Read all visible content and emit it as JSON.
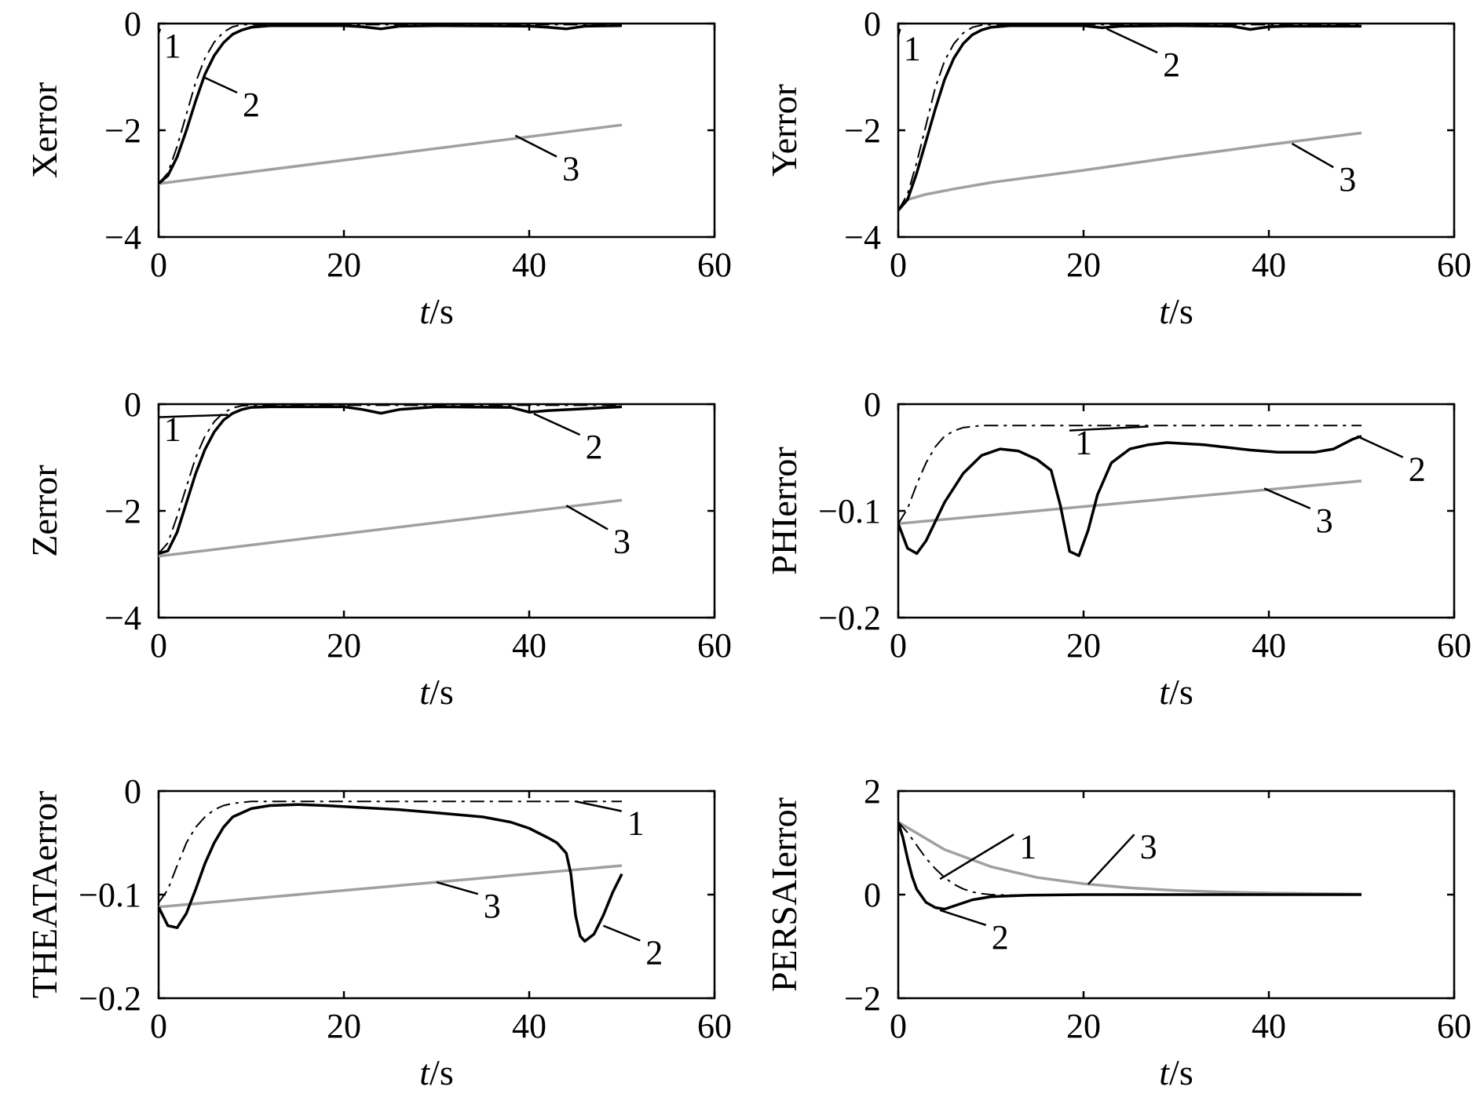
{
  "colors": {
    "s1": "#000000",
    "s2": "#000000",
    "s3": "#a0a0a0"
  },
  "chart_data": [
    {
      "type": "line",
      "ylabel": "Xerror",
      "xlabel_italic": "t",
      "xlabel_unit": "/s",
      "xlim": [
        0,
        60
      ],
      "ylim": [
        -4,
        0
      ],
      "xticks": [
        0,
        20,
        40,
        60
      ],
      "yticks": [
        0,
        -2,
        -4
      ],
      "ytick_labels": [
        "0",
        "−2",
        "−4"
      ],
      "series": [
        {
          "label": "1",
          "x": [
            0,
            1,
            2,
            3,
            4,
            5,
            6,
            7,
            8,
            9,
            10,
            50
          ],
          "y": [
            -3,
            -2.8,
            -2.3,
            -1.7,
            -1.1,
            -0.65,
            -0.35,
            -0.16,
            -0.06,
            -0.02,
            -0.02,
            -0.02
          ]
        },
        {
          "label": "2",
          "x": [
            0,
            1,
            2,
            3,
            4,
            5,
            6,
            7,
            8,
            9,
            10,
            12,
            14,
            20,
            22,
            24,
            26,
            30,
            40,
            42,
            44,
            46,
            50
          ],
          "y": [
            -3,
            -2.85,
            -2.5,
            -2,
            -1.45,
            -0.95,
            -0.6,
            -0.36,
            -0.2,
            -0.12,
            -0.07,
            -0.04,
            -0.04,
            -0.04,
            -0.06,
            -0.1,
            -0.05,
            -0.04,
            -0.05,
            -0.07,
            -0.1,
            -0.05,
            -0.04
          ]
        },
        {
          "label": "3",
          "x": [
            0,
            50
          ],
          "y": [
            -3,
            -1.9
          ]
        }
      ],
      "labels": [
        {
          "text": "1",
          "ax": 0.18,
          "ay": -0.1,
          "tx": 1.5,
          "ty": -0.4,
          "series": 0
        },
        {
          "text": "2",
          "ax": 4.8,
          "ay": -1.0,
          "tx": 10,
          "ty": -1.5,
          "series": 1
        },
        {
          "text": "3",
          "ax": 38.5,
          "ay": -2.1,
          "tx": 44.5,
          "ty": -2.7,
          "series": 2
        }
      ]
    },
    {
      "type": "line",
      "ylabel": "Yerror",
      "xlabel_italic": "t",
      "xlabel_unit": "/s",
      "xlim": [
        0,
        60
      ],
      "ylim": [
        -4,
        0
      ],
      "xticks": [
        0,
        20,
        40,
        60
      ],
      "yticks": [
        0,
        -2,
        -4
      ],
      "ytick_labels": [
        "0",
        "−2",
        "−4"
      ],
      "series": [
        {
          "label": "1",
          "x": [
            0,
            1,
            2,
            3,
            4,
            5,
            6,
            7,
            8,
            9,
            10,
            50
          ],
          "y": [
            -3.5,
            -3.2,
            -2.6,
            -1.9,
            -1.2,
            -0.7,
            -0.38,
            -0.18,
            -0.07,
            -0.03,
            -0.02,
            -0.02
          ]
        },
        {
          "label": "2",
          "x": [
            0,
            1,
            2,
            3,
            4,
            5,
            6,
            7,
            8,
            9,
            10,
            12,
            14,
            20,
            22,
            24,
            30,
            36,
            38,
            40,
            42,
            50
          ],
          "y": [
            -3.5,
            -3.3,
            -2.8,
            -2.2,
            -1.6,
            -1.05,
            -0.65,
            -0.38,
            -0.21,
            -0.12,
            -0.07,
            -0.04,
            -0.04,
            -0.04,
            -0.08,
            -0.05,
            -0.04,
            -0.05,
            -0.11,
            -0.06,
            -0.05,
            -0.05
          ]
        },
        {
          "label": "3",
          "x": [
            0,
            1,
            3,
            6,
            10,
            20,
            30,
            40,
            50
          ],
          "y": [
            -3.5,
            -3.3,
            -3.2,
            -3.1,
            -2.98,
            -2.75,
            -2.5,
            -2.27,
            -2.05
          ]
        }
      ],
      "labels": [
        {
          "text": "1",
          "ax": 0.2,
          "ay": -0.1,
          "tx": 1.5,
          "ty": -0.45,
          "series": 0
        },
        {
          "text": "2",
          "ax": 22.5,
          "ay": -0.1,
          "tx": 29.5,
          "ty": -0.75,
          "series": 1
        },
        {
          "text": "3",
          "ax": 42.5,
          "ay": -2.25,
          "tx": 48.5,
          "ty": -2.9,
          "series": 2
        }
      ]
    },
    {
      "type": "line",
      "ylabel": "Zerror",
      "xlabel_italic": "t",
      "xlabel_unit": "/s",
      "xlim": [
        0,
        60
      ],
      "ylim": [
        -4,
        0
      ],
      "xticks": [
        0,
        20,
        40,
        60
      ],
      "yticks": [
        0,
        -2,
        -4
      ],
      "ytick_labels": [
        "0",
        "−2",
        "−4"
      ],
      "series": [
        {
          "label": "1",
          "x": [
            0,
            1,
            2,
            3,
            4,
            5,
            6,
            7,
            8,
            9,
            10,
            50
          ],
          "y": [
            -2.8,
            -2.6,
            -2.1,
            -1.55,
            -1.0,
            -0.6,
            -0.33,
            -0.16,
            -0.07,
            -0.03,
            -0.02,
            -0.02
          ]
        },
        {
          "label": "2",
          "x": [
            0,
            1,
            2,
            3,
            4,
            5,
            6,
            7,
            8,
            9,
            10,
            12,
            14,
            20,
            22,
            24,
            26,
            30,
            38,
            40,
            42,
            50
          ],
          "y": [
            -2.8,
            -2.75,
            -2.4,
            -1.85,
            -1.3,
            -0.85,
            -0.52,
            -0.3,
            -0.17,
            -0.1,
            -0.06,
            -0.05,
            -0.05,
            -0.05,
            -0.1,
            -0.17,
            -0.1,
            -0.05,
            -0.06,
            -0.15,
            -0.12,
            -0.05
          ]
        },
        {
          "label": "3",
          "x": [
            0,
            50
          ],
          "y": [
            -2.85,
            -1.8
          ]
        }
      ],
      "labels": [
        {
          "text": "1",
          "ax": 7.5,
          "ay": -0.2,
          "tx": 1.5,
          "ty": -0.45,
          "series": 0
        },
        {
          "text": "2",
          "ax": 40.5,
          "ay": -0.18,
          "tx": 47,
          "ty": -0.78,
          "series": 1
        },
        {
          "text": "3",
          "ax": 44,
          "ay": -1.9,
          "tx": 50,
          "ty": -2.55,
          "series": 2
        }
      ]
    },
    {
      "type": "line",
      "ylabel": "PHIerror",
      "xlabel_italic": "t",
      "xlabel_unit": "/s",
      "xlim": [
        0,
        60
      ],
      "ylim": [
        -0.2,
        0
      ],
      "xticks": [
        0,
        20,
        40,
        60
      ],
      "yticks": [
        0,
        -0.1,
        -0.2
      ],
      "ytick_labels": [
        "0",
        "−0.1",
        "−0.2"
      ],
      "series": [
        {
          "label": "1",
          "x": [
            0,
            1,
            2,
            3,
            4,
            5,
            6,
            7,
            8,
            9,
            10,
            50
          ],
          "y": [
            -0.112,
            -0.098,
            -0.075,
            -0.055,
            -0.04,
            -0.03,
            -0.025,
            -0.022,
            -0.021,
            -0.02,
            -0.02,
            -0.02
          ]
        },
        {
          "label": "2",
          "x": [
            0,
            1,
            2,
            3,
            4,
            5,
            7,
            9,
            11,
            13,
            15,
            16.5,
            17.5,
            18.5,
            19.5,
            20.5,
            21.5,
            23,
            25,
            27,
            29,
            33,
            38,
            41,
            45,
            47,
            49,
            50
          ],
          "y": [
            -0.112,
            -0.135,
            -0.14,
            -0.128,
            -0.11,
            -0.092,
            -0.065,
            -0.048,
            -0.042,
            -0.044,
            -0.052,
            -0.062,
            -0.095,
            -0.138,
            -0.142,
            -0.118,
            -0.085,
            -0.055,
            -0.042,
            -0.038,
            -0.036,
            -0.038,
            -0.043,
            -0.045,
            -0.045,
            -0.042,
            -0.033,
            -0.03
          ]
        },
        {
          "label": "3",
          "x": [
            0,
            50
          ],
          "y": [
            -0.112,
            -0.072
          ]
        }
      ],
      "labels": [
        {
          "text": "1",
          "ax": 27,
          "ay": -0.021,
          "tx": 20,
          "ty": -0.035,
          "series": 0
        },
        {
          "text": "2",
          "ax": 49.5,
          "ay": -0.03,
          "tx": 56,
          "ty": -0.06,
          "series": 1
        },
        {
          "text": "3",
          "ax": 39.5,
          "ay": -0.079,
          "tx": 46,
          "ty": -0.108,
          "series": 2
        }
      ]
    },
    {
      "type": "line",
      "ylabel": "THEATAerror",
      "xlabel_italic": "t",
      "xlabel_unit": "/s",
      "xlim": [
        0,
        60
      ],
      "ylim": [
        -0.2,
        0
      ],
      "xticks": [
        0,
        20,
        40,
        60
      ],
      "yticks": [
        0,
        -0.1,
        -0.2
      ],
      "ytick_labels": [
        "0",
        "−0.1",
        "−0.2"
      ],
      "series": [
        {
          "label": "1",
          "x": [
            0,
            1,
            2,
            3,
            4,
            5,
            6,
            7,
            8,
            9,
            10,
            50
          ],
          "y": [
            -0.108,
            -0.095,
            -0.072,
            -0.05,
            -0.035,
            -0.025,
            -0.018,
            -0.014,
            -0.012,
            -0.011,
            -0.01,
            -0.01
          ]
        },
        {
          "label": "2",
          "x": [
            0,
            1,
            2,
            3,
            4,
            5,
            6,
            7,
            8,
            10,
            12,
            15,
            18,
            22,
            26,
            30,
            35,
            38,
            40,
            42,
            43,
            44,
            44.5,
            45,
            45.5,
            46,
            47,
            48,
            49,
            50
          ],
          "y": [
            -0.112,
            -0.13,
            -0.132,
            -0.118,
            -0.095,
            -0.07,
            -0.05,
            -0.035,
            -0.025,
            -0.017,
            -0.014,
            -0.013,
            -0.014,
            -0.016,
            -0.018,
            -0.021,
            -0.025,
            -0.03,
            -0.036,
            -0.045,
            -0.05,
            -0.06,
            -0.08,
            -0.12,
            -0.14,
            -0.145,
            -0.138,
            -0.12,
            -0.098,
            -0.08
          ]
        },
        {
          "label": "3",
          "x": [
            0,
            50
          ],
          "y": [
            -0.112,
            -0.072
          ]
        }
      ],
      "labels": [
        {
          "text": "1",
          "ax": 45,
          "ay": -0.01,
          "tx": 51.5,
          "ty": -0.03,
          "series": 0
        },
        {
          "text": "2",
          "ax": 48,
          "ay": -0.13,
          "tx": 53.5,
          "ty": -0.155,
          "series": 1
        },
        {
          "text": "3",
          "ax": 30,
          "ay": -0.088,
          "tx": 36,
          "ty": -0.11,
          "series": 2
        }
      ]
    },
    {
      "type": "line",
      "ylabel": "PERSAIerror",
      "xlabel_italic": "t",
      "xlabel_unit": "/s",
      "xlim": [
        0,
        60
      ],
      "ylim": [
        -2,
        2
      ],
      "xticks": [
        0,
        20,
        40,
        60
      ],
      "yticks": [
        2,
        0,
        -2
      ],
      "ytick_labels": [
        "2",
        "0",
        "−2"
      ],
      "series": [
        {
          "label": "1",
          "x": [
            0,
            1,
            2,
            3,
            4,
            5,
            6,
            7,
            8,
            9,
            10,
            12,
            50
          ],
          "y": [
            1.4,
            1.2,
            0.95,
            0.7,
            0.5,
            0.33,
            0.2,
            0.11,
            0.05,
            0.02,
            0,
            -0.01,
            0
          ]
        },
        {
          "label": "2",
          "x": [
            0,
            0.5,
            1,
            1.5,
            2,
            3,
            4,
            5,
            6,
            8,
            10,
            14,
            20,
            50
          ],
          "y": [
            1.4,
            1.1,
            0.7,
            0.35,
            0.1,
            -0.15,
            -0.25,
            -0.28,
            -0.22,
            -0.1,
            -0.04,
            -0.01,
            0,
            0
          ]
        },
        {
          "label": "3",
          "x": [
            0,
            5,
            10,
            15,
            20,
            25,
            30,
            35,
            40,
            45,
            50
          ],
          "y": [
            1.4,
            0.87,
            0.54,
            0.33,
            0.21,
            0.13,
            0.08,
            0.05,
            0.03,
            0.02,
            0.01
          ]
        }
      ],
      "labels": [
        {
          "text": "1",
          "ax": 4.5,
          "ay": 0.3,
          "tx": 14,
          "ty": 0.95,
          "series": 0
        },
        {
          "text": "2",
          "ax": 4.5,
          "ay": -0.3,
          "tx": 11,
          "ty": -0.8,
          "series": 1
        },
        {
          "text": "3",
          "ax": 20.5,
          "ay": 0.2,
          "tx": 27,
          "ty": 0.95,
          "series": 2
        }
      ]
    }
  ]
}
